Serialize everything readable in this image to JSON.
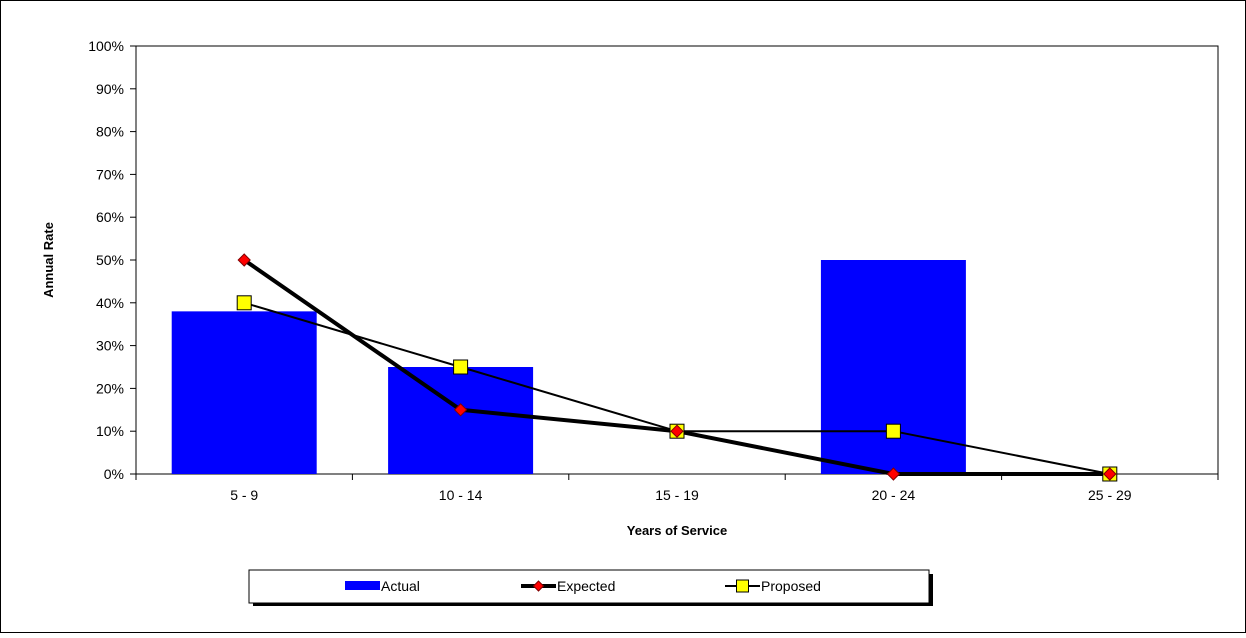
{
  "chart_data": {
    "type": "bar",
    "title": "",
    "xlabel": "Years of Service",
    "ylabel": "Annual Rate",
    "categories": [
      "5 - 9",
      "10 - 14",
      "15 - 19",
      "20 - 24",
      "25 - 29"
    ],
    "ylim": [
      0,
      100
    ],
    "yticks": [
      "0%",
      "10%",
      "20%",
      "30%",
      "40%",
      "50%",
      "60%",
      "70%",
      "80%",
      "90%",
      "100%"
    ],
    "grid": false,
    "legend_position": "bottom",
    "series": [
      {
        "name": "Actual",
        "kind": "bar",
        "color": "#0000ff",
        "values": [
          38,
          25,
          null,
          50,
          null
        ]
      },
      {
        "name": "Expected",
        "kind": "line",
        "color": "#000000",
        "marker": "diamond",
        "marker_color": "#ff0000",
        "values": [
          50,
          15,
          10,
          0,
          0
        ]
      },
      {
        "name": "Proposed",
        "kind": "line",
        "color": "#000000",
        "marker": "square",
        "marker_color": "#ffff00",
        "values": [
          40,
          25,
          10,
          10,
          0
        ]
      }
    ]
  }
}
